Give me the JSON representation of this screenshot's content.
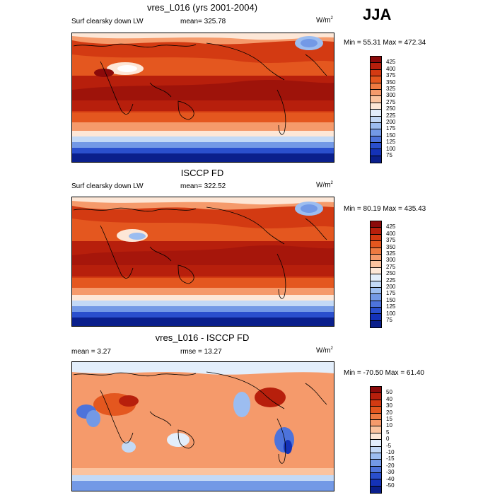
{
  "season": "JJA",
  "panels": [
    {
      "title": "vres_L016 (yrs 2001-2004)",
      "left_label": "Surf clearsky down LW",
      "center_label": "mean= 325.78",
      "units": "W/m",
      "units_sup": "2",
      "minmax": "Min = 55.31 Max = 472.34",
      "colorbar_labels": [
        "425",
        "400",
        "375",
        "350",
        "325",
        "300",
        "275",
        "250",
        "225",
        "200",
        "175",
        "150",
        "125",
        "100",
        "75"
      ],
      "colorbar_colors": [
        "#8b0a0a",
        "#b71f0c",
        "#d33a12",
        "#e4571f",
        "#ee7a41",
        "#f59a6b",
        "#fbc39f",
        "#fde7d7",
        "#e3eefb",
        "#c3d9f6",
        "#9cbdf0",
        "#7399e6",
        "#4d73db",
        "#2a4fcd",
        "#1432b8",
        "#0a1f8c"
      ]
    },
    {
      "title": "ISCCP FD",
      "left_label": "Surf clearsky down LW",
      "center_label": "mean= 322.52",
      "units": "W/m",
      "units_sup": "2",
      "minmax": "Min = 80.19 Max = 435.43",
      "colorbar_labels": [
        "425",
        "400",
        "375",
        "350",
        "325",
        "300",
        "275",
        "250",
        "225",
        "200",
        "175",
        "150",
        "125",
        "100",
        "75"
      ],
      "colorbar_colors": [
        "#8b0a0a",
        "#b71f0c",
        "#d33a12",
        "#e4571f",
        "#ee7a41",
        "#f59a6b",
        "#fbc39f",
        "#fde7d7",
        "#e3eefb",
        "#c3d9f6",
        "#9cbdf0",
        "#7399e6",
        "#4d73db",
        "#2a4fcd",
        "#1432b8",
        "#0a1f8c"
      ]
    },
    {
      "title": "vres_L016 - ISCCP FD",
      "left_label": "mean = 3.27",
      "center_label": "rmse = 13.27",
      "units": "W/m",
      "units_sup": "2",
      "minmax": "Min = -70.50 Max = 61.40",
      "colorbar_labels": [
        "50",
        "40",
        "30",
        "20",
        "15",
        "10",
        "5",
        "0",
        "-5",
        "-10",
        "-15",
        "-20",
        "-30",
        "-40",
        "-50"
      ],
      "colorbar_colors": [
        "#8b0a0a",
        "#b71f0c",
        "#d33a12",
        "#e4571f",
        "#ee7a41",
        "#f59a6b",
        "#fbc39f",
        "#fde7d7",
        "#e3eefb",
        "#c3d9f6",
        "#9cbdf0",
        "#7399e6",
        "#4d73db",
        "#2a4fcd",
        "#1432b8",
        "#0a1f8c"
      ]
    }
  ]
}
